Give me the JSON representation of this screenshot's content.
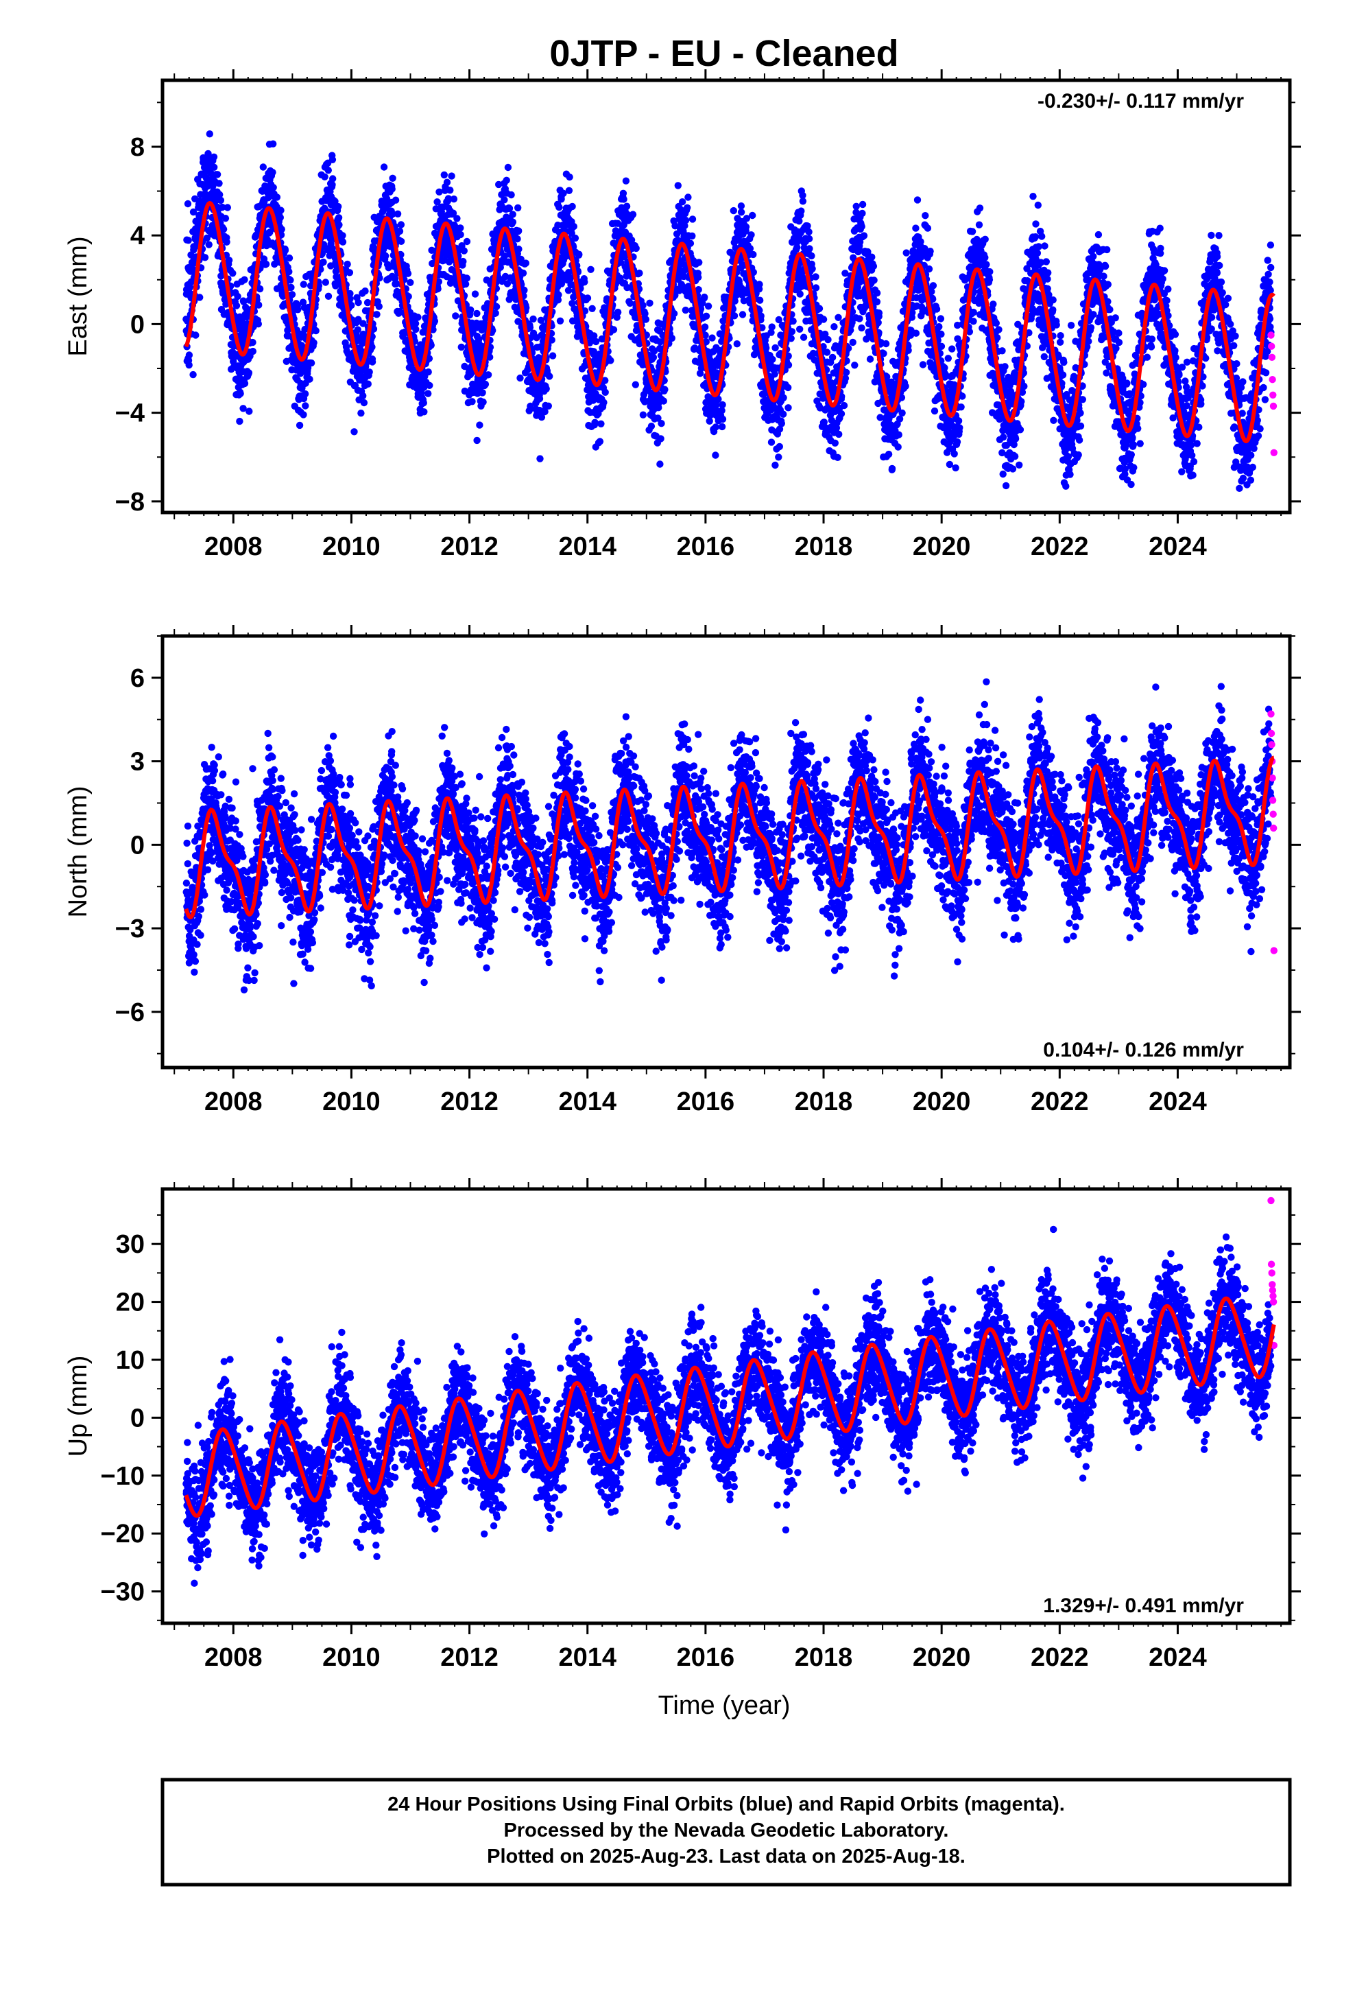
{
  "title": "0JTP  - EU - Cleaned",
  "xlabel": "Time (year)",
  "footer_lines": [
    "24 Hour Positions Using Final Orbits (blue) and Rapid Orbits (magenta).",
    "Processed by the Nevada Geodetic Laboratory.",
    "Plotted on 2025-Aug-23. Last data on 2025-Aug-18."
  ],
  "colors": {
    "final_orbits": "#0000ff",
    "rapid_orbits": "#ff00ff",
    "model_fit": "#ff0000",
    "frame": "#000000"
  },
  "chart_data": [
    {
      "type": "scatter",
      "component": "East",
      "ylabel": "East (mm)",
      "rate_label": "-0.230+/- 0.117 mm/yr",
      "xlim": [
        2006.8,
        2025.9
      ],
      "ylim": [
        -8.5,
        11.0
      ],
      "xticks": [
        2008,
        2010,
        2012,
        2014,
        2016,
        2018,
        2020,
        2022,
        2024
      ],
      "yticks": [
        8,
        4,
        0,
        -4,
        -8
      ],
      "ytick_labels": [
        "8",
        "4",
        "0",
        "−4",
        "−8"
      ],
      "fit": {
        "offset": 2.2,
        "trend_mm_per_yr": -0.23,
        "epoch": 2007.2,
        "annual_amp": 3.3,
        "annual_phase_year_frac": 0.38,
        "semiannual_amp": 0.3,
        "noise_std": 1.2
      },
      "series": [
        {
          "name": "Final Orbits",
          "x_range": [
            2007.2,
            2025.58
          ],
          "color": "#0000ff"
        },
        {
          "name": "Rapid Orbits",
          "x_range": [
            2025.58,
            2025.63
          ],
          "y_values": [
            -0.5,
            -1.0,
            -1.5,
            -2.5,
            -3.2,
            -3.7,
            -5.8
          ],
          "color": "#ff00ff"
        },
        {
          "name": "Model",
          "color": "#ff0000"
        }
      ]
    },
    {
      "type": "scatter",
      "component": "North",
      "ylabel": "North (mm)",
      "rate_label": "0.104+/- 0.126 mm/yr",
      "xlim": [
        2006.8,
        2025.9
      ],
      "ylim": [
        -8.0,
        7.5
      ],
      "xticks": [
        2008,
        2010,
        2012,
        2014,
        2016,
        2018,
        2020,
        2022,
        2024
      ],
      "yticks": [
        6,
        3,
        0,
        -3,
        -6
      ],
      "ytick_labels": [
        "6",
        "3",
        "0",
        "−3",
        "−6"
      ],
      "fit": {
        "offset": -0.7,
        "trend_mm_per_yr": 0.104,
        "epoch": 2007.2,
        "annual_amp": 1.6,
        "annual_phase_year_frac": 0.45,
        "semiannual_amp": 0.6,
        "noise_std": 1.1
      },
      "series": [
        {
          "name": "Final Orbits",
          "x_range": [
            2007.2,
            2025.58
          ],
          "color": "#0000ff"
        },
        {
          "name": "Rapid Orbits",
          "x_range": [
            2025.58,
            2025.63
          ],
          "y_values": [
            4.7,
            4.0,
            3.6,
            3.0,
            2.4,
            1.6,
            1.1,
            0.6,
            -3.8
          ],
          "color": "#ff00ff"
        },
        {
          "name": "Model",
          "color": "#ff0000"
        }
      ]
    },
    {
      "type": "scatter",
      "component": "Up",
      "ylabel": "Up (mm)",
      "rate_label": "1.329+/- 0.491 mm/yr",
      "xlim": [
        2006.8,
        2025.9
      ],
      "ylim": [
        -35.5,
        39.5
      ],
      "xticks": [
        2008,
        2010,
        2012,
        2014,
        2016,
        2018,
        2020,
        2022,
        2024
      ],
      "yticks": [
        30,
        20,
        10,
        0,
        -10,
        -20,
        -30
      ],
      "ytick_labels": [
        "30",
        "20",
        "10",
        "0",
        "−10",
        "−20",
        "−30"
      ],
      "fit": {
        "offset": -10.0,
        "trend_mm_per_yr": 1.329,
        "epoch": 2007.2,
        "annual_amp": 7.0,
        "annual_phase_year_frac": 0.6,
        "semiannual_amp": 0.8,
        "noise_std": 4.5
      },
      "series": [
        {
          "name": "Final Orbits",
          "x_range": [
            2007.2,
            2025.58
          ],
          "color": "#0000ff"
        },
        {
          "name": "Rapid Orbits",
          "x_range": [
            2025.58,
            2025.63
          ],
          "y_values": [
            37.5,
            26.5,
            25.0,
            23.0,
            22.0,
            21.0,
            20.0,
            12.5
          ],
          "color": "#ff00ff"
        },
        {
          "name": "Model",
          "color": "#ff0000"
        }
      ]
    }
  ]
}
